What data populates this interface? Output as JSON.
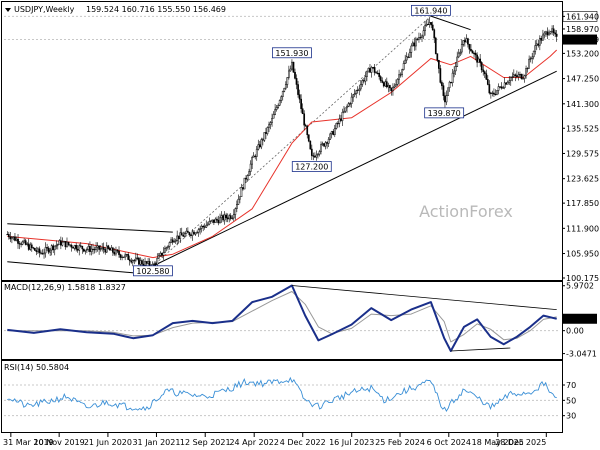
{
  "header": {
    "symbol": "USDJPY,Weekly",
    "ohlc": "159.524 160.716 155.550 156.469"
  },
  "watermark": "ActionForex",
  "colors": {
    "up": "#1a1a1a",
    "down": "#1a1a1a",
    "ma_fast": "#e8322a",
    "ma_slow": "#111111",
    "macd": "#1a2f8a",
    "signal": "#999999",
    "rsi": "#3a8fd6",
    "trend": "#000000",
    "grid_dash": "#c8c8c8",
    "last_price_box": "#000000",
    "annot_border": "#1a2f8a"
  },
  "chart_data": [
    {
      "type": "candlestick",
      "title": "USDJPY,Weekly",
      "ylim": [
        100.175,
        162.5
      ],
      "yticks": [
        "161.940",
        "158.970",
        "153.200",
        "147.250",
        "141.300",
        "135.525",
        "129.575",
        "123.625",
        "117.850",
        "111.900",
        "105.950",
        "100.175"
      ],
      "last_price": "156.469",
      "high_marker": "161.940",
      "annotations": [
        {
          "label": "102.580",
          "x": "Jan 2021",
          "value": 102.58
        },
        {
          "label": "127.200",
          "x": "Jan 2023",
          "value": 127.2
        },
        {
          "label": "151.930",
          "x": "Oct 2022",
          "value": 151.93
        },
        {
          "label": "161.940",
          "x": "Jul 2024",
          "value": 161.94
        },
        {
          "label": "139.870",
          "x": "Sep 2024",
          "value": 139.87
        }
      ],
      "x_labels": [
        "31 Mar 2019",
        "10 Nov 2019",
        "21 Jun 2020",
        "31 Jan 2021",
        "12 Sep 2021",
        "24 Apr 2022",
        "4 Dec 2022",
        "16 Jul 2023",
        "25 Feb 2024",
        "6 Oct 2024",
        "18 May 2025",
        "28 Dec 2025"
      ],
      "path_points": [
        [
          "Mar 2019",
          110.5
        ],
        [
          "Aug 2019",
          106.0
        ],
        [
          "Nov 2019",
          108.5
        ],
        [
          "Mar 2020",
          107.0
        ],
        [
          "Jun 2020",
          107.0
        ],
        [
          "Oct 2020",
          104.5
        ],
        [
          "Jan 2021",
          103.0
        ],
        [
          "Apr 2021",
          109.5
        ],
        [
          "Jul 2021",
          111.0
        ],
        [
          "Oct 2021",
          113.5
        ],
        [
          "Jan 2022",
          115.0
        ],
        [
          "Apr 2022",
          128.0
        ],
        [
          "Jul 2022",
          137.5
        ],
        [
          "Oct 2022",
          150.5
        ],
        [
          "Jan 2023",
          128.5
        ],
        [
          "Apr 2023",
          134.0
        ],
        [
          "Jul 2023",
          142.5
        ],
        [
          "Oct 2023",
          150.0
        ],
        [
          "Jan 2024",
          144.0
        ],
        [
          "Apr 2024",
          154.5
        ],
        [
          "Jul 2024",
          161.0
        ],
        [
          "Sep 2024",
          141.5
        ],
        [
          "Dec 2024",
          157.0
        ],
        [
          "Mar 2025",
          149.0
        ],
        [
          "Apr 2025",
          143.0
        ],
        [
          "Jul 2025",
          147.5
        ],
        [
          "Sep 2025",
          148.0
        ],
        [
          "Nov 2025",
          155.5
        ],
        [
          "Jan 2026",
          159.0
        ],
        [
          "Feb 2026",
          156.5
        ]
      ],
      "series": [
        {
          "name": "MA fast",
          "values": [
            [
              "Mar 2019",
              110.0
            ],
            [
              "Mar 2020",
              108.3
            ],
            [
              "Jan 2021",
              105.0
            ],
            [
              "Apr 2021",
              105.8
            ],
            [
              "Oct 2021",
              110.0
            ],
            [
              "Apr 2022",
              116.5
            ],
            [
              "Oct 2022",
              132.0
            ],
            [
              "Jan 2023",
              137.0
            ],
            [
              "Jul 2023",
              138.0
            ],
            [
              "Jan 2024",
              144.0
            ],
            [
              "Jul 2024",
              152.0
            ],
            [
              "Oct 2024",
              150.5
            ],
            [
              "Jan 2025",
              152.5
            ],
            [
              "Jun 2025",
              147.5
            ],
            [
              "Sep 2025",
              147.5
            ],
            [
              "Jan 2026",
              152.5
            ],
            [
              "Feb 2026",
              154.0
            ]
          ]
        },
        {
          "name": "Channel upper",
          "values": [
            [
              "Mar 2019",
              113.0
            ],
            [
              "Apr 2021",
              111.0
            ]
          ]
        },
        {
          "name": "Channel lower",
          "values": [
            [
              "Mar 2019",
              104.0
            ],
            [
              "Jan 2021",
              101.0
            ]
          ]
        },
        {
          "name": "Uptrend",
          "values": [
            [
              "Jan 2021",
              103.0
            ],
            [
              "Feb 2026",
              149.0
            ]
          ]
        },
        {
          "name": "Upper trend",
          "values": [
            [
              "Jul 2024",
              162.0
            ],
            [
              "Jan 2025",
              158.8
            ]
          ]
        },
        {
          "name": "Low marker",
          "values": [
            [
              "Aug 2024",
              139.8
            ],
            [
              "Oct 2024",
              139.8
            ]
          ]
        }
      ]
    },
    {
      "type": "line",
      "title": "MACD(12,26,9) 1.5818 1.8327",
      "ylim": [
        -3.5,
        6.2
      ],
      "yticks": [
        "5.9702",
        "1.5818",
        "0.00",
        "-3.0471"
      ],
      "series": [
        {
          "name": "MACD",
          "values": [
            [
              "Mar 2019",
              0.1
            ],
            [
              "Jul 2019",
              -0.3
            ],
            [
              "Nov 2019",
              0.2
            ],
            [
              "Mar 2020",
              -0.2
            ],
            [
              "Jul 2020",
              -0.4
            ],
            [
              "Oct 2020",
              -1.0
            ],
            [
              "Jan 2021",
              -0.6
            ],
            [
              "Apr 2021",
              1.0
            ],
            [
              "Jul 2021",
              1.3
            ],
            [
              "Oct 2021",
              1.0
            ],
            [
              "Jan 2022",
              1.3
            ],
            [
              "Apr 2022",
              3.8
            ],
            [
              "Jul 2022",
              4.5
            ],
            [
              "Oct 2022",
              6.0
            ],
            [
              "Dec 2022",
              2.0
            ],
            [
              "Feb 2023",
              -1.3
            ],
            [
              "Apr 2023",
              -0.5
            ],
            [
              "Jul 2023",
              0.8
            ],
            [
              "Oct 2023",
              3.0
            ],
            [
              "Jan 2024",
              1.4
            ],
            [
              "Apr 2024",
              2.8
            ],
            [
              "Jul 2024",
              3.8
            ],
            [
              "Sep 2024",
              -1.0
            ],
            [
              "Oct 2024",
              -2.7
            ],
            [
              "Dec 2024",
              0.5
            ],
            [
              "Feb 2025",
              1.5
            ],
            [
              "Apr 2025",
              -0.8
            ],
            [
              "Jun 2025",
              -1.8
            ],
            [
              "Aug 2025",
              -0.8
            ],
            [
              "Oct 2025",
              0.5
            ],
            [
              "Dec 2025",
              2.0
            ],
            [
              "Feb 2026",
              1.58
            ]
          ]
        },
        {
          "name": "Signal",
          "values": [
            [
              "Mar 2019",
              0.0
            ],
            [
              "Jul 2019",
              0.0
            ],
            [
              "Nov 2019",
              0.0
            ],
            [
              "Mar 2020",
              0.0
            ],
            [
              "Jul 2020",
              -0.2
            ],
            [
              "Oct 2020",
              -0.7
            ],
            [
              "Jan 2021",
              -0.6
            ],
            [
              "Apr 2021",
              0.4
            ],
            [
              "Jul 2021",
              1.0
            ],
            [
              "Oct 2021",
              1.1
            ],
            [
              "Jan 2022",
              1.2
            ],
            [
              "Apr 2022",
              2.6
            ],
            [
              "Jul 2022",
              4.0
            ],
            [
              "Oct 2022",
              5.2
            ],
            [
              "Dec 2022",
              3.5
            ],
            [
              "Feb 2023",
              0.5
            ],
            [
              "Apr 2023",
              -0.4
            ],
            [
              "Jul 2023",
              0.3
            ],
            [
              "Oct 2023",
              2.2
            ],
            [
              "Jan 2024",
              2.0
            ],
            [
              "Apr 2024",
              2.2
            ],
            [
              "Jul 2024",
              3.3
            ],
            [
              "Sep 2024",
              1.2
            ],
            [
              "Oct 2024",
              -1.5
            ],
            [
              "Dec 2024",
              -0.5
            ],
            [
              "Feb 2025",
              0.9
            ],
            [
              "Apr 2025",
              0.2
            ],
            [
              "Jun 2025",
              -1.2
            ],
            [
              "Aug 2025",
              -1.0
            ],
            [
              "Oct 2025",
              0.0
            ],
            [
              "Dec 2025",
              1.5
            ],
            [
              "Feb 2026",
              1.83
            ]
          ]
        },
        {
          "name": "Divergence upper",
          "values": [
            [
              "Oct 2022",
              6.0
            ],
            [
              "Feb 2026",
              2.8
            ]
          ]
        },
        {
          "name": "Divergence lower",
          "values": [
            [
              "Oct 2024",
              -2.7
            ],
            [
              "Jul 2025",
              -2.3
            ]
          ]
        }
      ]
    },
    {
      "type": "line",
      "title": "RSI(14) 50.5804",
      "ylim": [
        10,
        100
      ],
      "yticks": [
        "70",
        "50",
        "30"
      ],
      "series": [
        {
          "name": "RSI",
          "values": [
            [
              "Mar 2019",
              55
            ],
            [
              "Jun 2019",
              42
            ],
            [
              "Sep 2019",
              48
            ],
            [
              "Dec 2019",
              55
            ],
            [
              "Mar 2020",
              40
            ],
            [
              "Jun 2020",
              48
            ],
            [
              "Sep 2020",
              42
            ],
            [
              "Dec 2020",
              40
            ],
            [
              "Mar 2021",
              62
            ],
            [
              "Jun 2021",
              58
            ],
            [
              "Sep 2021",
              55
            ],
            [
              "Dec 2021",
              63
            ],
            [
              "Mar 2022",
              74
            ],
            [
              "Jun 2022",
              72
            ],
            [
              "Oct 2022",
              78
            ],
            [
              "Dec 2022",
              50
            ],
            [
              "Feb 2023",
              42
            ],
            [
              "Apr 2023",
              50
            ],
            [
              "Jul 2023",
              60
            ],
            [
              "Oct 2023",
              66
            ],
            [
              "Dec 2023",
              50
            ],
            [
              "Mar 2024",
              62
            ],
            [
              "Jun 2024",
              72
            ],
            [
              "Jul 2024",
              74
            ],
            [
              "Sep 2024",
              36
            ],
            [
              "Dec 2024",
              64
            ],
            [
              "Mar 2025",
              48
            ],
            [
              "Apr 2025",
              40
            ],
            [
              "Jul 2025",
              58
            ],
            [
              "Oct 2025",
              60
            ],
            [
              "Dec 2025",
              72
            ],
            [
              "Feb 2026",
              50.58
            ]
          ]
        }
      ]
    }
  ]
}
